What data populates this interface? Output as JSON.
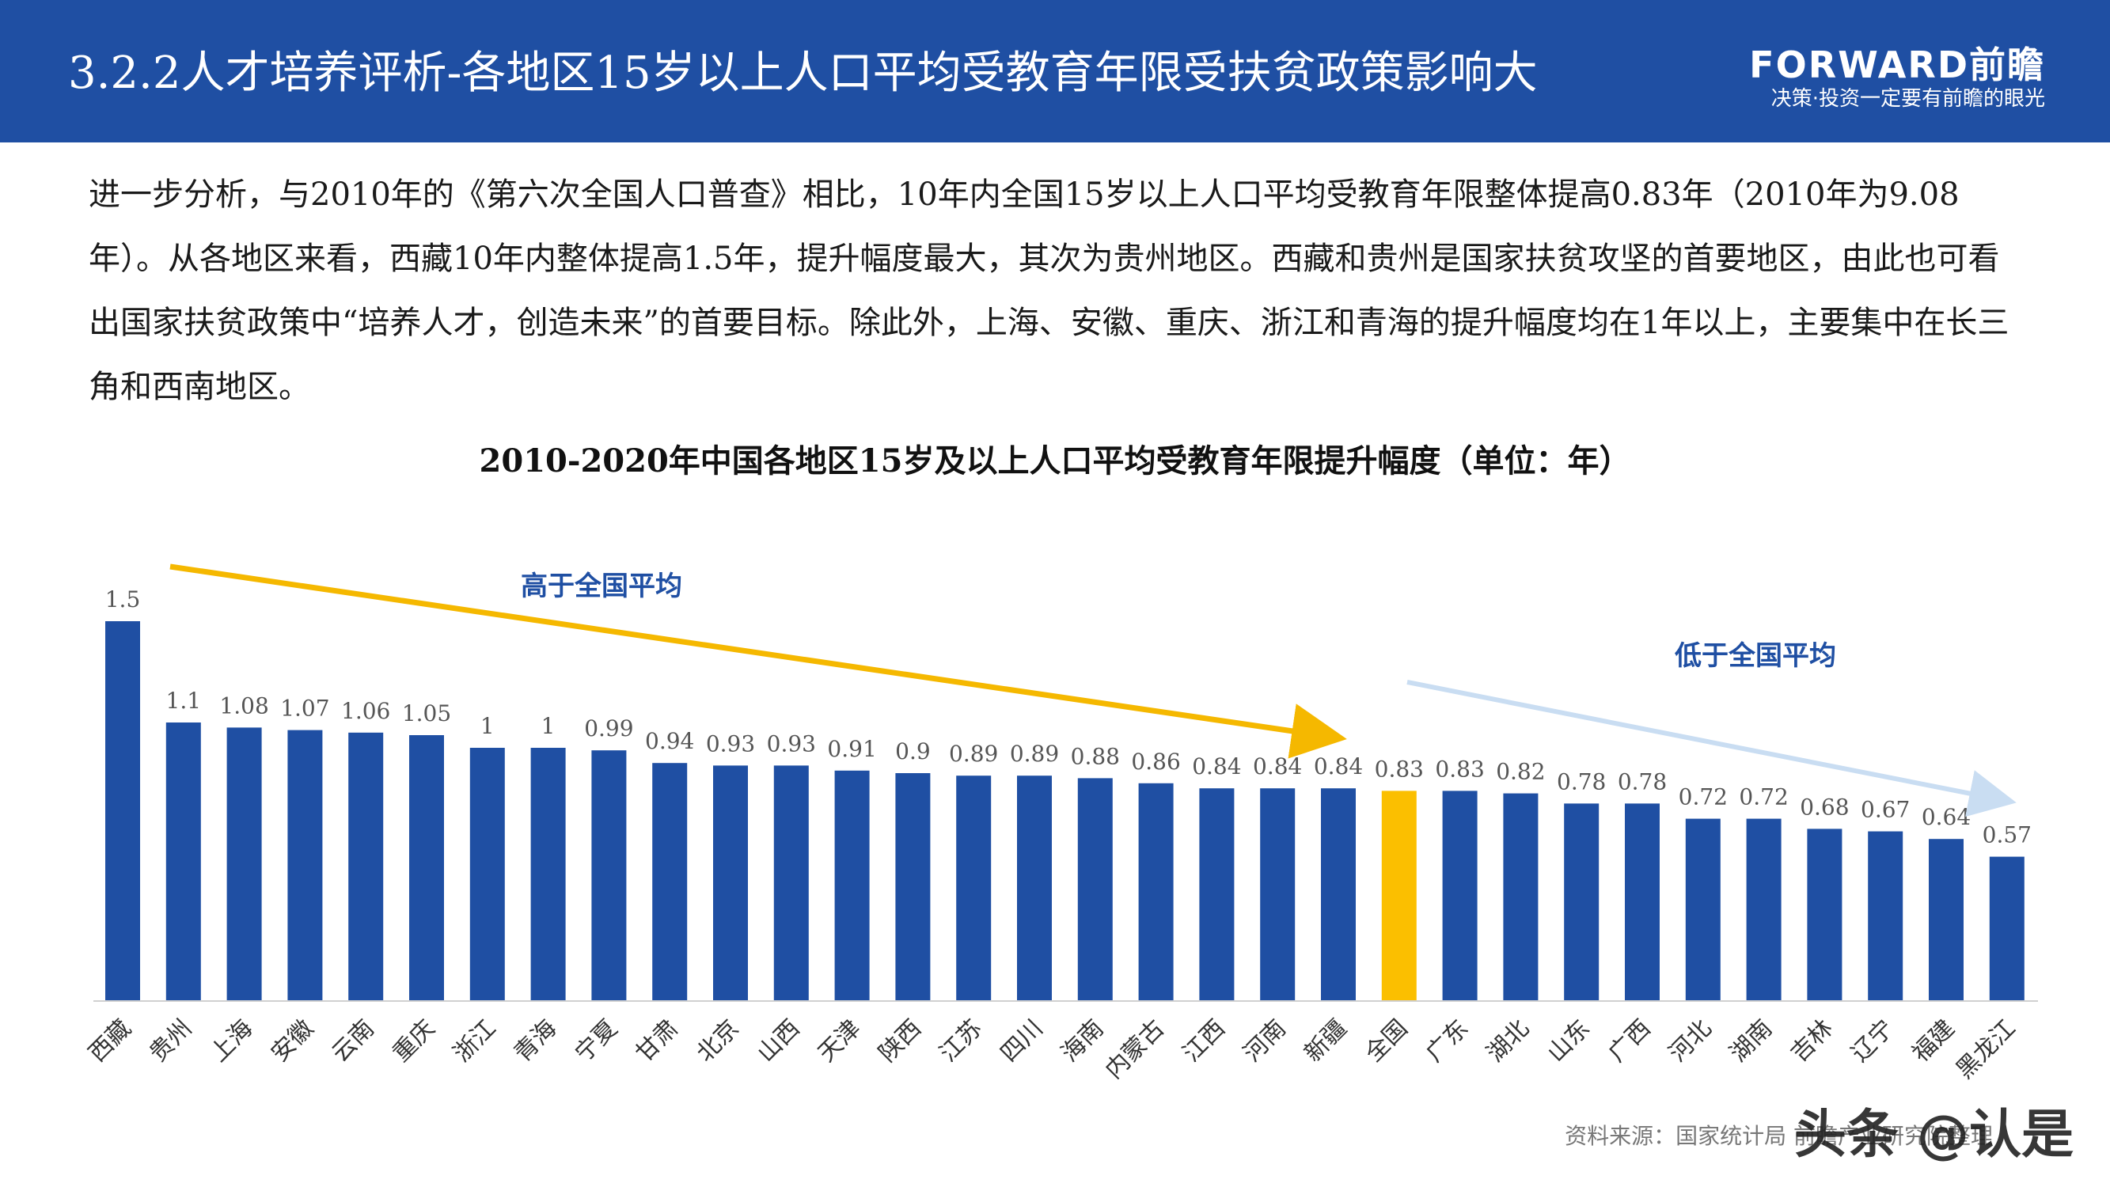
{
  "header": {
    "title": "3.2.2人才培养评析-各地区15岁以上人口平均受教育年限受扶贫政策影响大",
    "brand_name": "FORWARD前瞻",
    "brand_slogan": "决策·投资一定要有前瞻的眼光"
  },
  "intro_text": "进一步分析，与2010年的《第六次全国人口普查》相比，10年内全国15岁以上人口平均受教育年限整体提高0.83年（2010年为9.08年）。从各地区来看，西藏10年内整体提高1.5年，提升幅度最大，其次为贵州地区。西藏和贵州是国家扶贫攻坚的首要地区，由此也可看出国家扶贫政策中“培养人才，创造未来”的首要目标。除此外，上海、安徽、重庆、浙江和青海的提升幅度均在1年以上，主要集中在长三角和西南地区。",
  "chart_data": {
    "type": "bar",
    "title": "2010-2020年中国各地区15岁及以上人口平均受教育年限提升幅度（单位：年）",
    "xlabel": "",
    "ylabel": "",
    "ylim": [
      0,
      1.6
    ],
    "categories": [
      "西藏",
      "贵州",
      "上海",
      "安徽",
      "云南",
      "重庆",
      "浙江",
      "青海",
      "宁夏",
      "甘肃",
      "北京",
      "山西",
      "天津",
      "陕西",
      "江苏",
      "四川",
      "海南",
      "内蒙古",
      "江西",
      "河南",
      "新疆",
      "全国",
      "广东",
      "湖北",
      "山东",
      "广西",
      "河北",
      "湖南",
      "吉林",
      "辽宁",
      "福建",
      "黑龙江"
    ],
    "values": [
      1.5,
      1.1,
      1.08,
      1.07,
      1.06,
      1.05,
      1,
      1,
      0.99,
      0.94,
      0.93,
      0.93,
      0.91,
      0.9,
      0.89,
      0.89,
      0.88,
      0.86,
      0.84,
      0.84,
      0.84,
      0.83,
      0.83,
      0.82,
      0.78,
      0.78,
      0.72,
      0.72,
      0.68,
      0.67,
      0.64,
      0.57
    ],
    "value_labels": [
      "1.5",
      "1.1",
      "1.08",
      "1.07",
      "1.06",
      "1.05",
      "1",
      "1",
      "0.99",
      "0.94",
      "0.93",
      "0.93",
      "0.91",
      "0.9",
      "0.89",
      "0.89",
      "0.88",
      "0.86",
      "0.84",
      "0.84",
      "0.84",
      "0.83",
      "0.83",
      "0.82",
      "0.78",
      "0.78",
      "0.72",
      "0.72",
      "0.68",
      "0.67",
      "0.64",
      "0.57"
    ],
    "highlight_category": "全国",
    "grid": false,
    "annotations": {
      "above_label": "高于全国平均",
      "below_label": "低于全国平均"
    }
  },
  "colors": {
    "header_bg": "#1f4fa3",
    "bar": "#1f4fa3",
    "bar_highlight": "#fbbf00",
    "above_arrow": "#f5b800",
    "below_arrow": "#c9ddf2",
    "annotation_text": "#1f4fa3"
  },
  "footer": {
    "source": "资料来源：国家统计局 前瞻产业研究院整理",
    "watermark": "头条 @认是"
  }
}
